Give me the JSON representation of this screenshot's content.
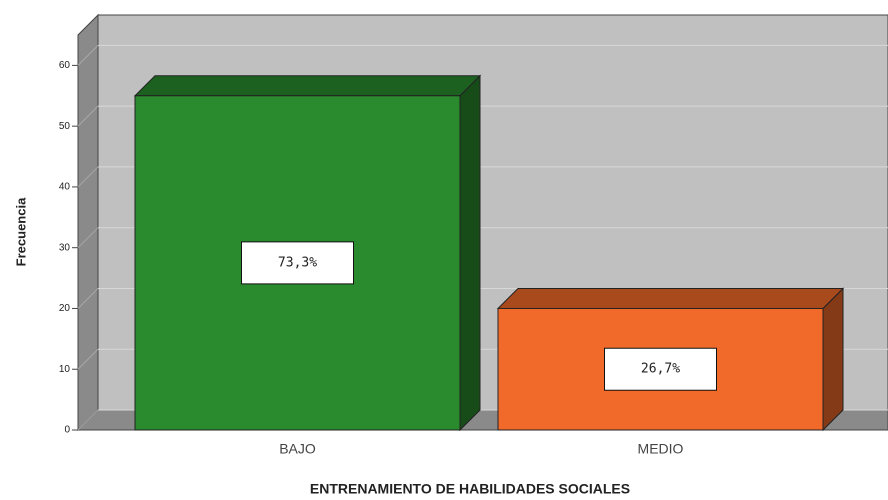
{
  "chart_data": {
    "type": "bar3d",
    "x_label": "ENTRENAMIENTO DE HABILIDADES SOCIALES",
    "y_label": "Frecuencia",
    "categories": [
      "BAJO",
      "MEDIO"
    ],
    "values": [
      55,
      20
    ],
    "colors": [
      "#2a8a2e",
      "#f26a2a"
    ],
    "percentages": [
      73.3,
      26.7
    ],
    "value_labels": [
      "73,3%",
      "26,7%"
    ],
    "ylim": [
      0,
      65
    ],
    "yticks": [
      0,
      10,
      20,
      30,
      40,
      50,
      60
    ],
    "grid": true
  }
}
